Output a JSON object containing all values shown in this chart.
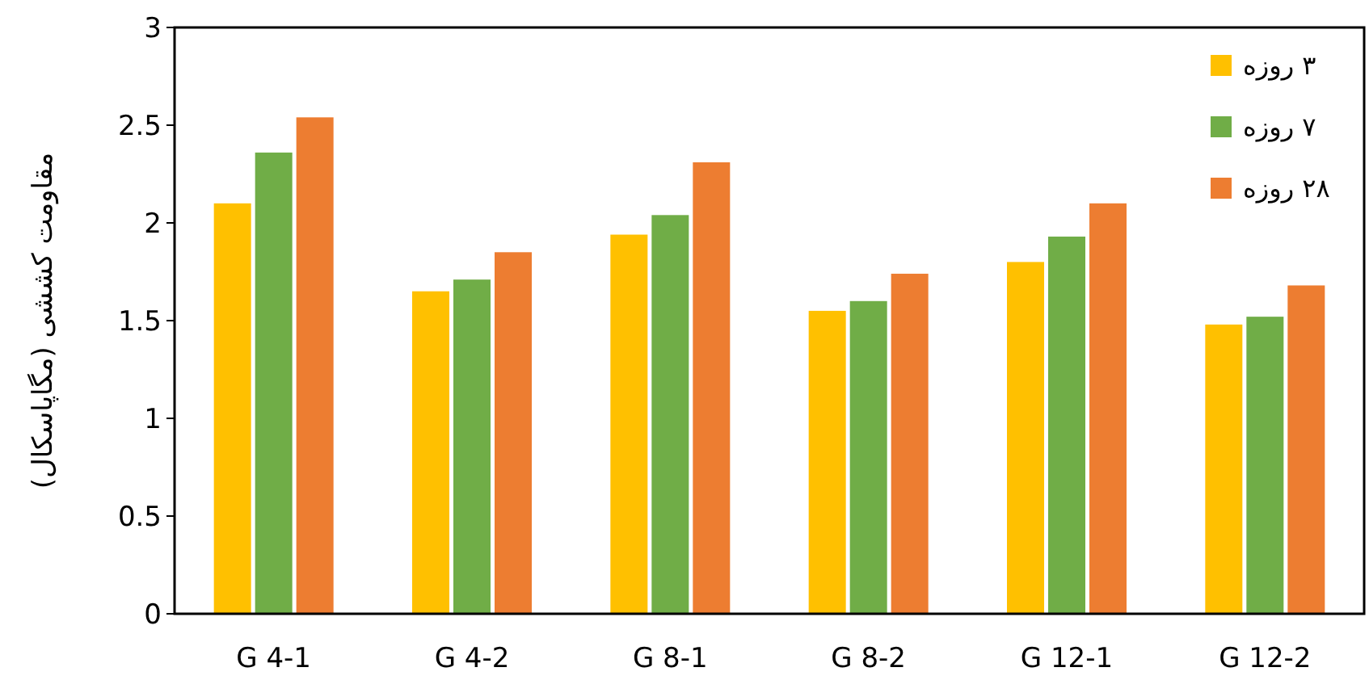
{
  "chart_data": {
    "type": "bar",
    "ylabel": "مقاومت کششی (مگاپاسکال)",
    "categories": [
      "G 4-1",
      "G 4-2",
      "G 8-1",
      "G 8-2",
      "G 12-1",
      "G 12-2"
    ],
    "series": [
      {
        "name": "۳ روزه",
        "color": "#ffc000",
        "values": [
          2.1,
          1.65,
          1.94,
          1.55,
          1.8,
          1.48
        ]
      },
      {
        "name": "۷ روزه",
        "color": "#70ad47",
        "values": [
          2.36,
          1.71,
          2.04,
          1.6,
          1.93,
          1.52
        ]
      },
      {
        "name": "۲۸ روزه",
        "color": "#ed7d31",
        "values": [
          2.54,
          1.85,
          2.31,
          1.74,
          2.1,
          1.68
        ]
      }
    ],
    "ylim": [
      0,
      3
    ],
    "yticks": [
      0,
      0.5,
      1,
      1.5,
      2,
      2.5,
      3
    ],
    "grid": false,
    "legend": "top right"
  }
}
